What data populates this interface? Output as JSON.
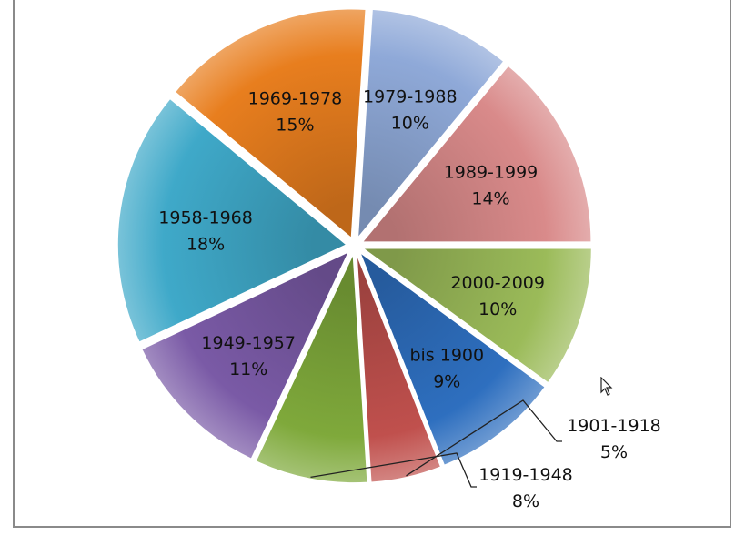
{
  "chart_data": {
    "type": "pie",
    "title": "",
    "slices": [
      {
        "label": "2000-2009",
        "pct_label": "10%",
        "value": 10,
        "color": "#9bbb59"
      },
      {
        "label": "bis 1900",
        "pct_label": "9%",
        "value": 9,
        "color": "#2e6fbf"
      },
      {
        "label": "1901-1918",
        "pct_label": "5%",
        "value": 5,
        "color": "#c0504d"
      },
      {
        "label": "1919-1948",
        "pct_label": "8%",
        "value": 8,
        "color": "#7fa93b"
      },
      {
        "label": "1949-1957",
        "pct_label": "11%",
        "value": 11,
        "color": "#7a5aa6"
      },
      {
        "label": "1958-1968",
        "pct_label": "18%",
        "value": 18,
        "color": "#3fa9c9"
      },
      {
        "label": "1969-1978",
        "pct_label": "15%",
        "value": 15,
        "color": "#e87e1e"
      },
      {
        "label": "1979-1988",
        "pct_label": "10%",
        "value": 10,
        "color": "#8fa9d8"
      },
      {
        "label": "1989-1999",
        "pct_label": "14%",
        "value": 14,
        "color": "#d98a8a"
      }
    ],
    "legend": "none",
    "labels_inside": true
  }
}
